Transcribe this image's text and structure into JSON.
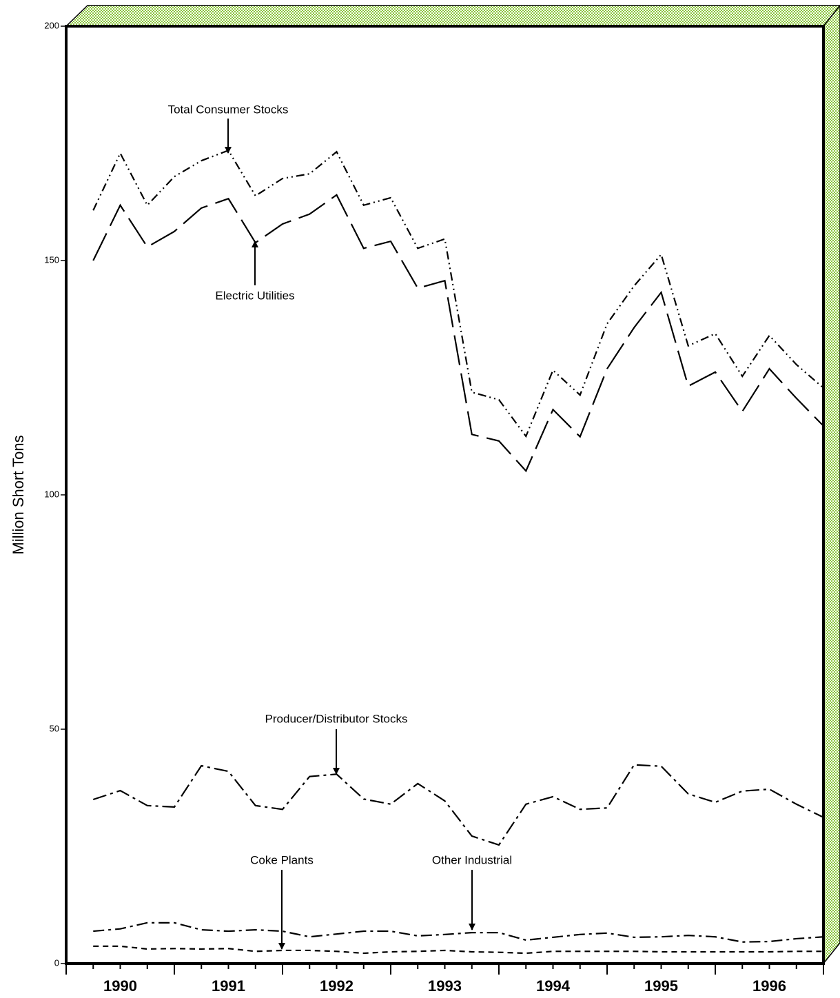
{
  "chart_data": {
    "type": "line",
    "y_label": "Million Short Tons",
    "ylim": [
      0,
      200
    ],
    "yticks": [
      0,
      50,
      100,
      150,
      200
    ],
    "categories": [
      null,
      "1990",
      null,
      null,
      null,
      "1991",
      null,
      null,
      null,
      "1992",
      null,
      null,
      null,
      "1993",
      null,
      null,
      null,
      "1994",
      null,
      null,
      null,
      "1995",
      null,
      null,
      null,
      "1996",
      null,
      null
    ],
    "series": [
      {
        "name": "Total Consumer Stocks",
        "color": "#000000",
        "dash": "12,5,2,5,2,5",
        "values": [
          160.7,
          172.9,
          161.8,
          167.9,
          171.3,
          173.5,
          163.8,
          167.5,
          168.5,
          173.2,
          161.8,
          163.4,
          152.6,
          154.6,
          121.9,
          120.3,
          112.5,
          126.6,
          121.3,
          136.5,
          144.6,
          151.3,
          131.8,
          134.4,
          125.3,
          134.0,
          127.8,
          122.8
        ]
      },
      {
        "name": "Electric Utilities",
        "color": "#000000",
        "dash": "44,12",
        "values": [
          150.0,
          161.8,
          152.9,
          156.2,
          161.2,
          163.2,
          153.8,
          157.8,
          159.9,
          164.0,
          152.6,
          154.1,
          144.1,
          145.7,
          112.9,
          111.5,
          105.1,
          118.2,
          112.4,
          126.9,
          135.7,
          143.2,
          123.2,
          126.2,
          117.8,
          126.9,
          120.6,
          114.7
        ]
      },
      {
        "name": "Producer/Distributor Stocks",
        "color": "#000000",
        "dash": "20,6,4,6",
        "values": [
          35.0,
          36.9,
          33.7,
          33.4,
          42.2,
          41.0,
          33.7,
          32.9,
          39.9,
          40.4,
          35.1,
          34.0,
          38.4,
          34.7,
          27.2,
          25.3,
          34.0,
          35.6,
          32.9,
          33.2,
          42.4,
          42.1,
          36.2,
          34.4,
          36.8,
          37.2,
          34.0,
          31.2
        ]
      },
      {
        "name": "Other Industrial",
        "color": "#000000",
        "dash": "16,6,4,6",
        "values": [
          6.9,
          7.4,
          8.7,
          8.7,
          7.2,
          6.9,
          7.2,
          6.9,
          5.7,
          6.3,
          6.9,
          6.9,
          5.9,
          6.2,
          6.6,
          6.6,
          5.0,
          5.6,
          6.2,
          6.5,
          5.6,
          5.7,
          6.0,
          5.7,
          4.6,
          4.7,
          5.3,
          5.7
        ]
      },
      {
        "name": "Coke Plants",
        "color": "#000000",
        "dash": "8,6",
        "values": [
          3.7,
          3.7,
          3.1,
          3.2,
          3.1,
          3.2,
          2.6,
          2.8,
          2.8,
          2.6,
          2.2,
          2.5,
          2.6,
          2.8,
          2.5,
          2.4,
          2.2,
          2.6,
          2.6,
          2.6,
          2.6,
          2.5,
          2.5,
          2.5,
          2.5,
          2.5,
          2.6,
          2.6
        ]
      }
    ],
    "frame_color": "#8cc63f"
  }
}
